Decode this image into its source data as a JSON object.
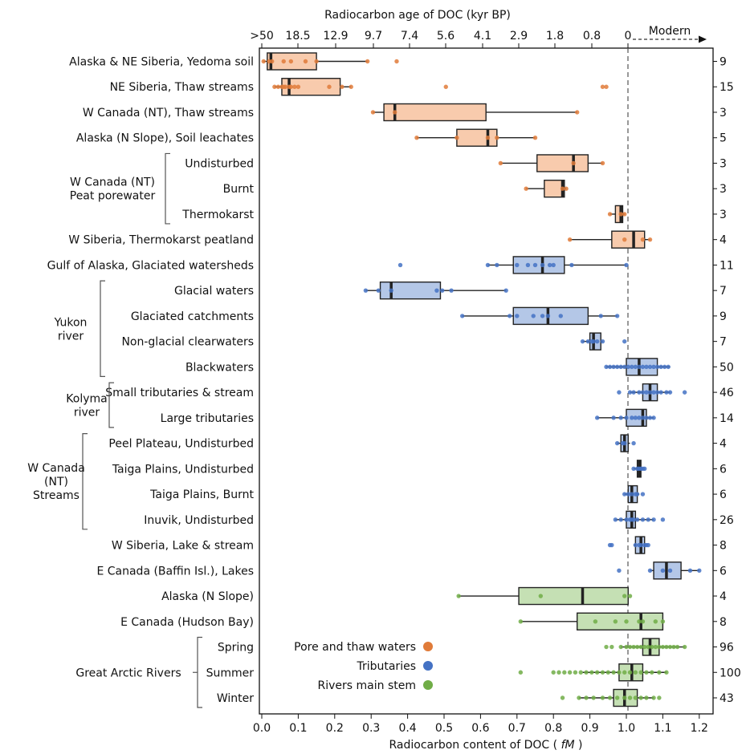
{
  "chart_data": {
    "type": "box",
    "title_top": "Radiocarbon age of DOC (kyr BP)",
    "xlabel_main": "Radiocarbon content of DOC",
    "xlabel_unit": "fM",
    "top_ticks": [
      ">50",
      "18.5",
      "12.9",
      "9.7",
      "7.4",
      "5.6",
      "4.1",
      "2.9",
      "1.8",
      "0.8",
      "0"
    ],
    "top_modern_label": "Modern",
    "bottom_ticks": [
      "0.0",
      "0.1",
      "0.2",
      "0.3",
      "0.4",
      "0.5",
      "0.6",
      "0.7",
      "0.8",
      "0.9",
      "1.0",
      "1.1",
      "1.2"
    ],
    "xlim": [
      0,
      1.2
    ],
    "reference_line_x": 1.0,
    "colors": {
      "pore_fill": "#f8cbad",
      "pore_point": "#e07b39",
      "trib_fill": "#b4c7e7",
      "trib_point": "#4472c4",
      "river_fill": "#c5e0b4",
      "river_point": "#70ad47"
    },
    "legend": [
      {
        "name": "Pore and thaw waters",
        "color": "#e07b39"
      },
      {
        "name": "Tributaries",
        "color": "#4472c4"
      },
      {
        "name": "Rivers main stem",
        "color": "#70ad47"
      }
    ],
    "groups": [
      {
        "label": "W Canada (NT)\nPeat porewater",
        "from": 4,
        "to": 6
      },
      {
        "label": "Yukon\nriver",
        "from": 9,
        "to": 12
      },
      {
        "label": "Kolyma\nriver",
        "from": 13,
        "to": 14
      },
      {
        "label": "W Canada\n(NT)\nStreams",
        "from": 15,
        "to": 18
      },
      {
        "label": "Great Arctic Rivers",
        "from": 23,
        "to": 25
      }
    ],
    "rows": [
      {
        "label": "Alaska & NE Siberia, Yedoma soil",
        "cat": "pore",
        "n": "9",
        "wl": 0.005,
        "q1": 0.015,
        "med": 0.025,
        "q3": 0.15,
        "wh": 0.29,
        "pts": [
          0.005,
          0.02,
          0.028,
          0.06,
          0.08,
          0.12,
          0.15,
          0.29,
          0.37
        ]
      },
      {
        "label": "NE Siberia, Thaw streams",
        "cat": "pore",
        "n": "15",
        "wl": 0.035,
        "q1": 0.055,
        "med": 0.075,
        "q3": 0.215,
        "wh": 0.245,
        "pts": [
          0.035,
          0.045,
          0.055,
          0.06,
          0.065,
          0.075,
          0.08,
          0.09,
          0.1,
          0.185,
          0.22,
          0.245,
          0.505,
          0.935,
          0.945
        ]
      },
      {
        "label": "W Canada (NT), Thaw streams",
        "cat": "pore",
        "n": "3",
        "wl": 0.305,
        "q1": 0.335,
        "med": 0.365,
        "q3": 0.615,
        "wh": 0.865,
        "pts": [
          0.305,
          0.365,
          0.865
        ]
      },
      {
        "label": "Alaska (N Slope), Soil leachates",
        "cat": "pore",
        "n": "5",
        "wl": 0.425,
        "q1": 0.535,
        "med": 0.62,
        "q3": 0.645,
        "wh": 0.75,
        "pts": [
          0.425,
          0.535,
          0.62,
          0.645,
          0.75
        ]
      },
      {
        "label": "Undisturbed",
        "cat": "pore",
        "n": "3",
        "wl": 0.655,
        "q1": 0.755,
        "med": 0.855,
        "q3": 0.895,
        "wh": 0.935,
        "pts": [
          0.655,
          0.855,
          0.935
        ]
      },
      {
        "label": "Burnt",
        "cat": "pore",
        "n": "3",
        "wl": 0.725,
        "q1": 0.775,
        "med": 0.825,
        "q3": 0.83,
        "wh": 0.835,
        "pts": [
          0.725,
          0.825,
          0.835
        ]
      },
      {
        "label": "Thermokarst",
        "cat": "pore",
        "n": "3",
        "wl": 0.955,
        "q1": 0.97,
        "med": 0.985,
        "q3": 0.99,
        "wh": 0.995,
        "pts": [
          0.955,
          0.985,
          0.995
        ]
      },
      {
        "label": "W Siberia, Thermokarst peatland",
        "cat": "pore",
        "n": "4",
        "wl": 0.845,
        "q1": 0.96,
        "med": 1.02,
        "q3": 1.05,
        "wh": 1.065,
        "pts": [
          0.845,
          0.995,
          1.045,
          1.065
        ]
      },
      {
        "label": "Gulf of Alaska, Glaciated watersheds",
        "cat": "trib",
        "n": "11",
        "wl": 0.62,
        "q1": 0.69,
        "med": 0.77,
        "q3": 0.83,
        "wh": 1.0,
        "pts": [
          0.38,
          0.62,
          0.645,
          0.7,
          0.73,
          0.75,
          0.77,
          0.79,
          0.8,
          0.85,
          1.0
        ]
      },
      {
        "label": "Glacial waters",
        "cat": "trib",
        "n": "7",
        "wl": 0.285,
        "q1": 0.325,
        "med": 0.355,
        "q3": 0.49,
        "wh": 0.67,
        "pts": [
          0.285,
          0.32,
          0.355,
          0.48,
          0.495,
          0.52,
          0.67
        ]
      },
      {
        "label": "Glaciated catchments",
        "cat": "trib",
        "n": "9",
        "wl": 0.55,
        "q1": 0.69,
        "med": 0.785,
        "q3": 0.895,
        "wh": 0.975,
        "pts": [
          0.55,
          0.68,
          0.7,
          0.745,
          0.77,
          0.785,
          0.82,
          0.93,
          0.975
        ]
      },
      {
        "label": "Non-glacial clearwaters",
        "cat": "trib",
        "n": "7",
        "wl": 0.88,
        "q1": 0.9,
        "med": 0.91,
        "q3": 0.93,
        "wh": 0.935,
        "pts": [
          0.88,
          0.895,
          0.905,
          0.91,
          0.92,
          0.935,
          0.995
        ]
      },
      {
        "label": "Blackwaters",
        "cat": "trib",
        "n": "50",
        "wl": 0.945,
        "q1": 1.0,
        "med": 1.035,
        "q3": 1.085,
        "wh": 1.12,
        "pts": [
          0.945,
          0.955,
          0.965,
          0.975,
          0.985,
          0.995,
          1.005,
          1.015,
          1.025,
          1.035,
          1.045,
          1.055,
          1.065,
          1.075,
          1.085,
          1.095,
          1.105,
          1.115
        ]
      },
      {
        "label": "Small tributaries & stream",
        "cat": "trib",
        "n": "46",
        "wl": 1.01,
        "q1": 1.045,
        "med": 1.065,
        "q3": 1.085,
        "wh": 1.12,
        "pts": [
          0.98,
          1.01,
          1.02,
          1.035,
          1.045,
          1.055,
          1.065,
          1.075,
          1.085,
          1.095,
          1.11,
          1.12,
          1.16
        ]
      },
      {
        "label": "Large tributaries",
        "cat": "trib",
        "n": "14",
        "wl": 0.92,
        "q1": 1.0,
        "med": 1.045,
        "q3": 1.055,
        "wh": 1.075,
        "pts": [
          0.92,
          0.965,
          0.985,
          1.0,
          1.015,
          1.025,
          1.035,
          1.045,
          1.055,
          1.065,
          1.075
        ]
      },
      {
        "label": "Peel Plateau, Undisturbed",
        "cat": "trib",
        "n": "4",
        "wl": 0.975,
        "q1": 0.985,
        "med": 0.995,
        "q3": 1.005,
        "wh": 1.01,
        "pts": [
          0.975,
          0.99,
          0.995,
          1.02
        ]
      },
      {
        "label": "Taiga Plains, Undisturbed",
        "cat": "trib",
        "n": "6",
        "wl": 1.02,
        "q1": 1.03,
        "med": 1.035,
        "q3": 1.04,
        "wh": 1.045,
        "pts": [
          1.02,
          1.03,
          1.035,
          1.04,
          1.045,
          1.05
        ]
      },
      {
        "label": "Taiga Plains, Burnt",
        "cat": "trib",
        "n": "6",
        "wl": 0.995,
        "q1": 1.005,
        "med": 1.015,
        "q3": 1.03,
        "wh": 1.035,
        "pts": [
          0.995,
          1.005,
          1.015,
          1.025,
          1.03,
          1.045
        ]
      },
      {
        "label": "Inuvik, Undisturbed",
        "cat": "trib",
        "n": "26",
        "wl": 0.97,
        "q1": 1.0,
        "med": 1.015,
        "q3": 1.025,
        "wh": 1.075,
        "pts": [
          0.97,
          0.985,
          1.0,
          1.01,
          1.015,
          1.02,
          1.03,
          1.045,
          1.06,
          1.075,
          1.1
        ]
      },
      {
        "label": "W Siberia, Lake & stream",
        "cat": "trib",
        "n": "8",
        "wl": 1.02,
        "q1": 1.025,
        "med": 1.04,
        "q3": 1.05,
        "wh": 1.055,
        "pts": [
          0.955,
          0.96,
          1.025,
          1.035,
          1.04,
          1.05,
          1.055,
          1.06
        ]
      },
      {
        "label": "E Canada (Baffin Isl.), Lakes",
        "cat": "trib",
        "n": "6",
        "wl": 1.065,
        "q1": 1.075,
        "med": 1.11,
        "q3": 1.15,
        "wh": 1.2,
        "pts": [
          0.98,
          1.065,
          1.1,
          1.12,
          1.175,
          1.2
        ]
      },
      {
        "label": "Alaska (N Slope)",
        "cat": "river",
        "n": "4",
        "wl": 0.54,
        "q1": 0.705,
        "med": 0.88,
        "q3": 1.005,
        "wh": 1.005,
        "pts": [
          0.54,
          0.765,
          0.995,
          1.01
        ]
      },
      {
        "label": "E Canada (Hudson Bay)",
        "cat": "river",
        "n": "8",
        "wl": 0.71,
        "q1": 0.865,
        "med": 1.04,
        "q3": 1.1,
        "wh": 1.1,
        "pts": [
          0.71,
          0.915,
          0.97,
          1.0,
          1.035,
          1.045,
          1.08,
          1.1
        ]
      },
      {
        "label": "Spring",
        "cat": "river",
        "n": "96",
        "wl": 0.985,
        "q1": 1.045,
        "med": 1.065,
        "q3": 1.09,
        "wh": 1.16,
        "pts": [
          0.945,
          0.96,
          0.985,
          1.0,
          1.01,
          1.02,
          1.03,
          1.04,
          1.05,
          1.06,
          1.07,
          1.08,
          1.09,
          1.1,
          1.11,
          1.12,
          1.13,
          1.14,
          1.16
        ]
      },
      {
        "label": "Summer",
        "cat": "river",
        "n": "100",
        "wl": 0.88,
        "q1": 0.98,
        "med": 1.015,
        "q3": 1.045,
        "wh": 1.11,
        "pts": [
          0.71,
          0.8,
          0.815,
          0.83,
          0.845,
          0.86,
          0.875,
          0.89,
          0.905,
          0.92,
          0.935,
          0.95,
          0.965,
          0.98,
          0.995,
          1.01,
          1.025,
          1.04,
          1.055,
          1.07,
          1.09,
          1.11
        ]
      },
      {
        "label": "Winter",
        "cat": "river",
        "n": "43",
        "wl": 0.87,
        "q1": 0.965,
        "med": 0.995,
        "q3": 1.03,
        "wh": 1.075,
        "pts": [
          0.825,
          0.87,
          0.89,
          0.91,
          0.935,
          0.955,
          0.975,
          0.995,
          1.01,
          1.025,
          1.04,
          1.055,
          1.075,
          1.09
        ]
      }
    ]
  }
}
